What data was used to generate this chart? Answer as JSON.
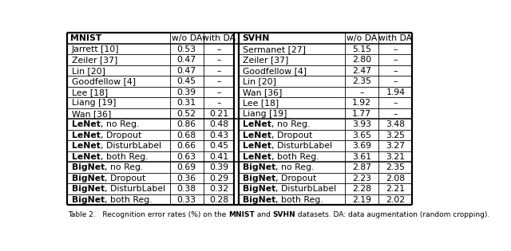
{
  "caption": "Table 2.   Recognition error rates (%) on the MNIST and SVHN datasets. DA: data augmentation (random cropping).",
  "mnist_header": [
    "MNIST",
    "w/o DA",
    "with DA"
  ],
  "svhn_header": [
    "SVHN",
    "w/o DA",
    "with DA"
  ],
  "prior_rows": [
    [
      "Jarrett [10]",
      "0.53",
      "–"
    ],
    [
      "Zeiler [37]",
      "0.47",
      "–"
    ],
    [
      "Lin [20]",
      "0.47",
      "–"
    ],
    [
      "Goodfellow [4]",
      "0.45",
      "–"
    ],
    [
      "Lee [18]",
      "0.39",
      "–"
    ],
    [
      "Liang [19]",
      "0.31",
      "–"
    ],
    [
      "Wan [36]",
      "0.52",
      "0.21"
    ]
  ],
  "prior_svhn_rows": [
    [
      "Sermanet [27]",
      "5.15",
      "–"
    ],
    [
      "Zeiler [37]",
      "2.80",
      "–"
    ],
    [
      "Goodfellow [4]",
      "2.47",
      "–"
    ],
    [
      "Lin [20]",
      "2.35",
      "–"
    ],
    [
      "Wan [36]",
      "–",
      "1.94"
    ],
    [
      "Lee [18]",
      "1.92",
      "–"
    ],
    [
      "Liang [19]",
      "1.77",
      "–"
    ]
  ],
  "lenet_rows": [
    [
      [
        "LeNet",
        ", no Reg."
      ],
      "0.86",
      "0.48"
    ],
    [
      [
        "LeNet",
        ", Dropout"
      ],
      "0.68",
      "0.43"
    ],
    [
      [
        "LeNet",
        ", DisturbLabel"
      ],
      "0.66",
      "0.45"
    ],
    [
      [
        "LeNet",
        ", both Reg."
      ],
      "0.63",
      "0.41"
    ]
  ],
  "lenet_svhn_rows": [
    [
      [
        "LeNet",
        ", no Reg."
      ],
      "3.93",
      "3.48"
    ],
    [
      [
        "LeNet",
        ", Dropout"
      ],
      "3.65",
      "3.25"
    ],
    [
      [
        "LeNet",
        ", DisturbLabel"
      ],
      "3.69",
      "3.27"
    ],
    [
      [
        "LeNet",
        ", both Reg."
      ],
      "3.61",
      "3.21"
    ]
  ],
  "bignet_rows": [
    [
      [
        "BigNet",
        ", no Reg."
      ],
      "0.69",
      "0.39"
    ],
    [
      [
        "BigNet",
        ", Dropout"
      ],
      "0.36",
      "0.29"
    ],
    [
      [
        "BigNet",
        ", DisturbLabel"
      ],
      "0.38",
      "0.32"
    ],
    [
      [
        "BigNet",
        ", both Reg."
      ],
      "0.33",
      "0.28"
    ]
  ],
  "bignet_svhn_rows": [
    [
      [
        "BigNet",
        ", no Reg."
      ],
      "2.87",
      "2.35"
    ],
    [
      [
        "BigNet",
        ", Dropout"
      ],
      "2.23",
      "2.08"
    ],
    [
      [
        "BigNet",
        ", DisturbLabel"
      ],
      "2.28",
      "2.21"
    ],
    [
      [
        "BigNet",
        ", both Reg."
      ],
      "2.19",
      "2.02"
    ]
  ]
}
